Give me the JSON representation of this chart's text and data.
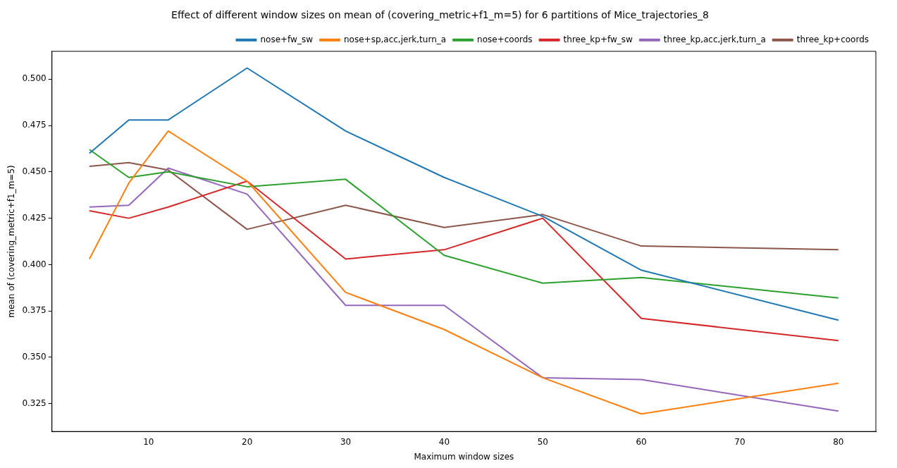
{
  "chart_data": {
    "type": "line",
    "title": "Effect of different window sizes on mean of (covering_metric+f1_m=5) for 6 partitions of Mice_trajectories_8",
    "xlabel": "Maximum window sizes",
    "ylabel": "mean of (covering_metric+f1_m=5)",
    "x": [
      4,
      8,
      12,
      20,
      30,
      40,
      50,
      60,
      80
    ],
    "series": [
      {
        "name": "nose+fw_sw",
        "color": "#1f77b4",
        "values": [
          0.46,
          0.478,
          0.478,
          0.506,
          0.472,
          0.447,
          0.426,
          0.397,
          0.37
        ]
      },
      {
        "name": "nose+sp,acc,jerk,turn_a",
        "color": "#ff7f0e",
        "values": [
          0.403,
          0.444,
          0.472,
          0.445,
          0.385,
          0.365,
          0.339,
          0.3195,
          0.336
        ]
      },
      {
        "name": "nose+coords",
        "color": "#2ca02c",
        "values": [
          0.462,
          0.447,
          0.45,
          0.442,
          0.446,
          0.405,
          0.39,
          0.393,
          0.382
        ]
      },
      {
        "name": "three_kp+fw_sw",
        "color": "#d62728",
        "values": [
          0.429,
          0.425,
          0.431,
          0.445,
          0.403,
          0.408,
          0.425,
          0.371,
          0.359
        ]
      },
      {
        "name": "three_kp,acc,jerk,turn_a",
        "color": "#9467bd",
        "values": [
          0.431,
          0.432,
          0.452,
          0.438,
          0.378,
          0.378,
          0.339,
          0.338,
          0.321
        ]
      },
      {
        "name": "three_kp+coords",
        "color": "#8c564b",
        "values": [
          0.453,
          0.455,
          0.451,
          0.419,
          0.432,
          0.42,
          0.427,
          0.41,
          0.408
        ]
      }
    ],
    "xlim": [
      0.2,
      83.8
    ],
    "ylim": [
      0.31,
      0.515
    ],
    "xticks": [
      10,
      20,
      30,
      40,
      50,
      60,
      70,
      80
    ],
    "yticks": [
      {
        "value": 0.325,
        "label": "0.325"
      },
      {
        "value": 0.35,
        "label": "0.350"
      },
      {
        "value": 0.375,
        "label": "0.375"
      },
      {
        "value": 0.4,
        "label": "0.400"
      },
      {
        "value": 0.425,
        "label": "0.425"
      },
      {
        "value": 0.45,
        "label": "0.450"
      },
      {
        "value": 0.475,
        "label": "0.475"
      },
      {
        "value": 0.5,
        "label": "0.500"
      }
    ],
    "grid": false,
    "legend": "top right",
    "marker": "none",
    "line_style": "solid"
  }
}
